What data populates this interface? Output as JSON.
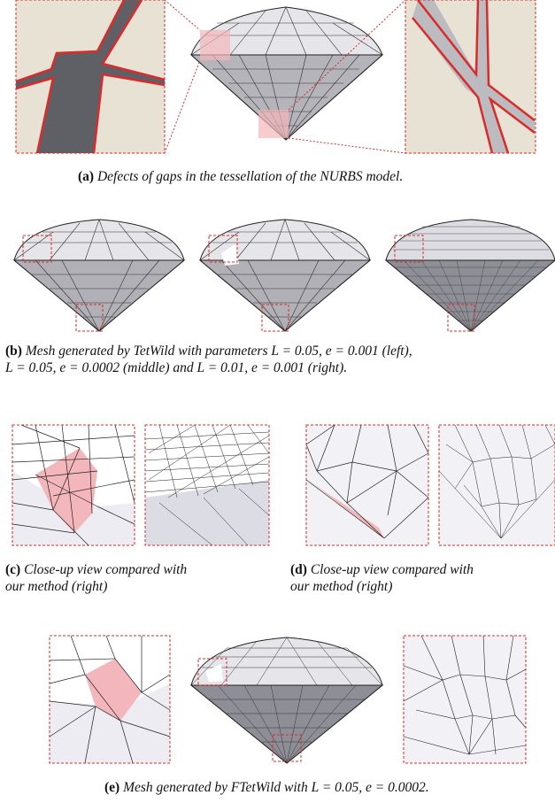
{
  "captions": {
    "a": {
      "label": "(a)",
      "text": "Defects of gaps in the tessellation of the NURBS model."
    },
    "b": {
      "label": "(b)",
      "line1": "Mesh generated by TetWild with parameters L = 0.05, e = 0.001 (left),",
      "line2": "L = 0.05, e = 0.0002 (middle) and L = 0.01, e = 0.001 (right)."
    },
    "c": {
      "label": "(c)",
      "line1": "Close-up view compared with",
      "line2": "our method (right)"
    },
    "d": {
      "label": "(d)",
      "line1": "Close-up view compared with",
      "line2": "our method (right)"
    },
    "e": {
      "label": "(e)",
      "text": "Mesh generated by FTetWild with L = 0.05, e = 0.0002."
    }
  },
  "colors": {
    "highlight_red": "#d92b2b",
    "defect_pink": "#f2b6bb",
    "mesh_gray": "#9a9a9a",
    "panel_bg": "#f0f0f4",
    "beige": "#e8e2d4"
  }
}
